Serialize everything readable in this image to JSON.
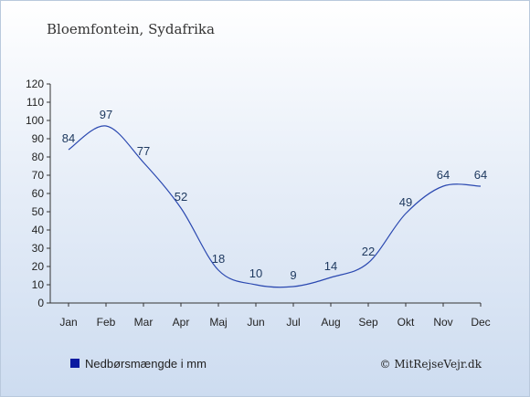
{
  "location": "Bloemfontein, Sydafrika",
  "credit": "© MitRejseVejr.dk",
  "legend": {
    "label": "Nedbørsmængde i mm",
    "color": "#0a1aa0"
  },
  "chart_data": {
    "type": "line",
    "categories": [
      "Jan",
      "Feb",
      "Mar",
      "Apr",
      "Maj",
      "Jun",
      "Jul",
      "Aug",
      "Sep",
      "Okt",
      "Nov",
      "Dec"
    ],
    "series": [
      {
        "name": "Nedbørsmængde i mm",
        "values": [
          84,
          97,
          77,
          52,
          18,
          10,
          9,
          14,
          22,
          49,
          64,
          64
        ]
      }
    ],
    "title": "Bloemfontein, Sydafrika",
    "ylim": [
      0,
      120
    ],
    "yticks": [
      0,
      10,
      20,
      30,
      40,
      50,
      60,
      70,
      80,
      90,
      100,
      110,
      120
    ],
    "grid": false,
    "legend_position": "bottom-left",
    "line_color": "#2a48b0"
  }
}
